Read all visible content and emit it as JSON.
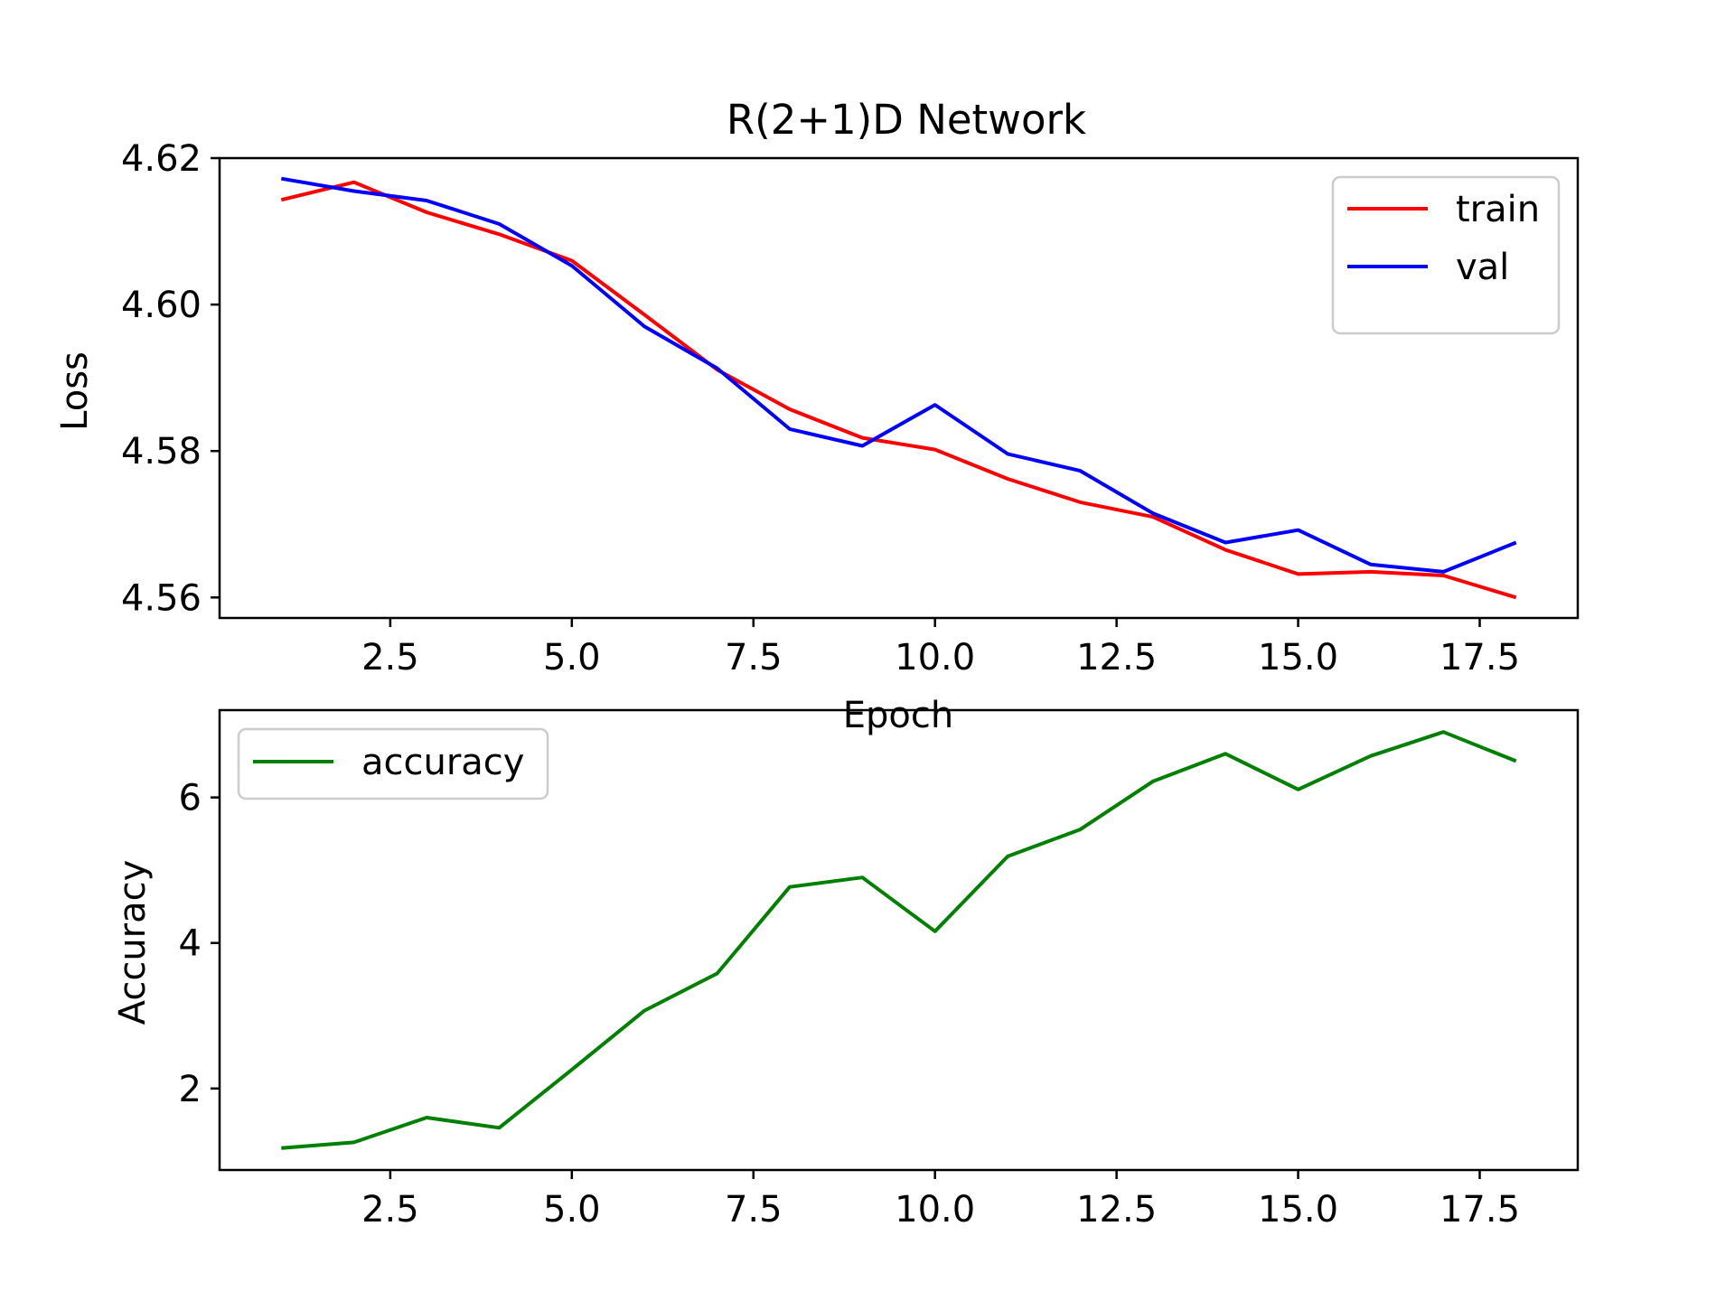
{
  "figure_title": "R(2+1)D Network",
  "chart_data": [
    {
      "type": "line",
      "title": "R(2+1)D Network",
      "xlabel": "Epoch",
      "ylabel": "Loss",
      "x": [
        1,
        2,
        3,
        4,
        5,
        6,
        7,
        8,
        9,
        10,
        11,
        12,
        13,
        14,
        15,
        16,
        17,
        18
      ],
      "xlim": [
        0.15,
        18.85
      ],
      "ylim": [
        4.5572,
        4.62
      ],
      "xticks": [
        2.5,
        5.0,
        7.5,
        10.0,
        12.5,
        15.0,
        17.5
      ],
      "xtick_labels": [
        "2.5",
        "5.0",
        "7.5",
        "10.0",
        "12.5",
        "15.0",
        "17.5"
      ],
      "yticks": [
        4.56,
        4.58,
        4.6,
        4.62
      ],
      "ytick_labels": [
        "4.56",
        "4.58",
        "4.60",
        "4.62"
      ],
      "grid": false,
      "legend": "top-right",
      "series": [
        {
          "name": "train",
          "color": "#ff0000",
          "values": [
            4.6143,
            4.6167,
            4.6126,
            4.6096,
            4.606,
            4.5986,
            4.5911,
            4.5857,
            4.5818,
            4.5802,
            4.5762,
            4.573,
            4.571,
            4.5665,
            4.5632,
            4.5635,
            4.563,
            4.56
          ]
        },
        {
          "name": "val",
          "color": "#0000ff",
          "values": [
            4.6172,
            4.6155,
            4.6142,
            4.611,
            4.6053,
            4.597,
            4.5913,
            4.583,
            4.5807,
            4.5863,
            4.5796,
            4.5773,
            4.5715,
            4.5675,
            4.5692,
            4.5645,
            4.5635,
            4.5675
          ]
        }
      ]
    },
    {
      "type": "line",
      "xlabel": "",
      "ylabel": "Accuracy",
      "x": [
        1,
        2,
        3,
        4,
        5,
        6,
        7,
        8,
        9,
        10,
        11,
        12,
        13,
        14,
        15,
        16,
        17,
        18
      ],
      "xlim": [
        0.15,
        18.85
      ],
      "ylim": [
        0.88,
        7.2
      ],
      "xticks": [
        2.5,
        5.0,
        7.5,
        10.0,
        12.5,
        15.0,
        17.5
      ],
      "xtick_labels": [
        "2.5",
        "5.0",
        "7.5",
        "10.0",
        "12.5",
        "15.0",
        "17.5"
      ],
      "yticks": [
        2,
        4,
        6
      ],
      "ytick_labels": [
        "2",
        "4",
        "6"
      ],
      "grid": false,
      "legend": "top-left",
      "series": [
        {
          "name": "accuracy",
          "color": "#008000",
          "values": [
            1.18,
            1.26,
            1.6,
            1.46,
            2.26,
            3.07,
            3.58,
            4.77,
            4.9,
            4.16,
            5.19,
            5.56,
            6.22,
            6.6,
            6.11,
            6.57,
            6.9,
            6.5
          ]
        }
      ]
    }
  ]
}
